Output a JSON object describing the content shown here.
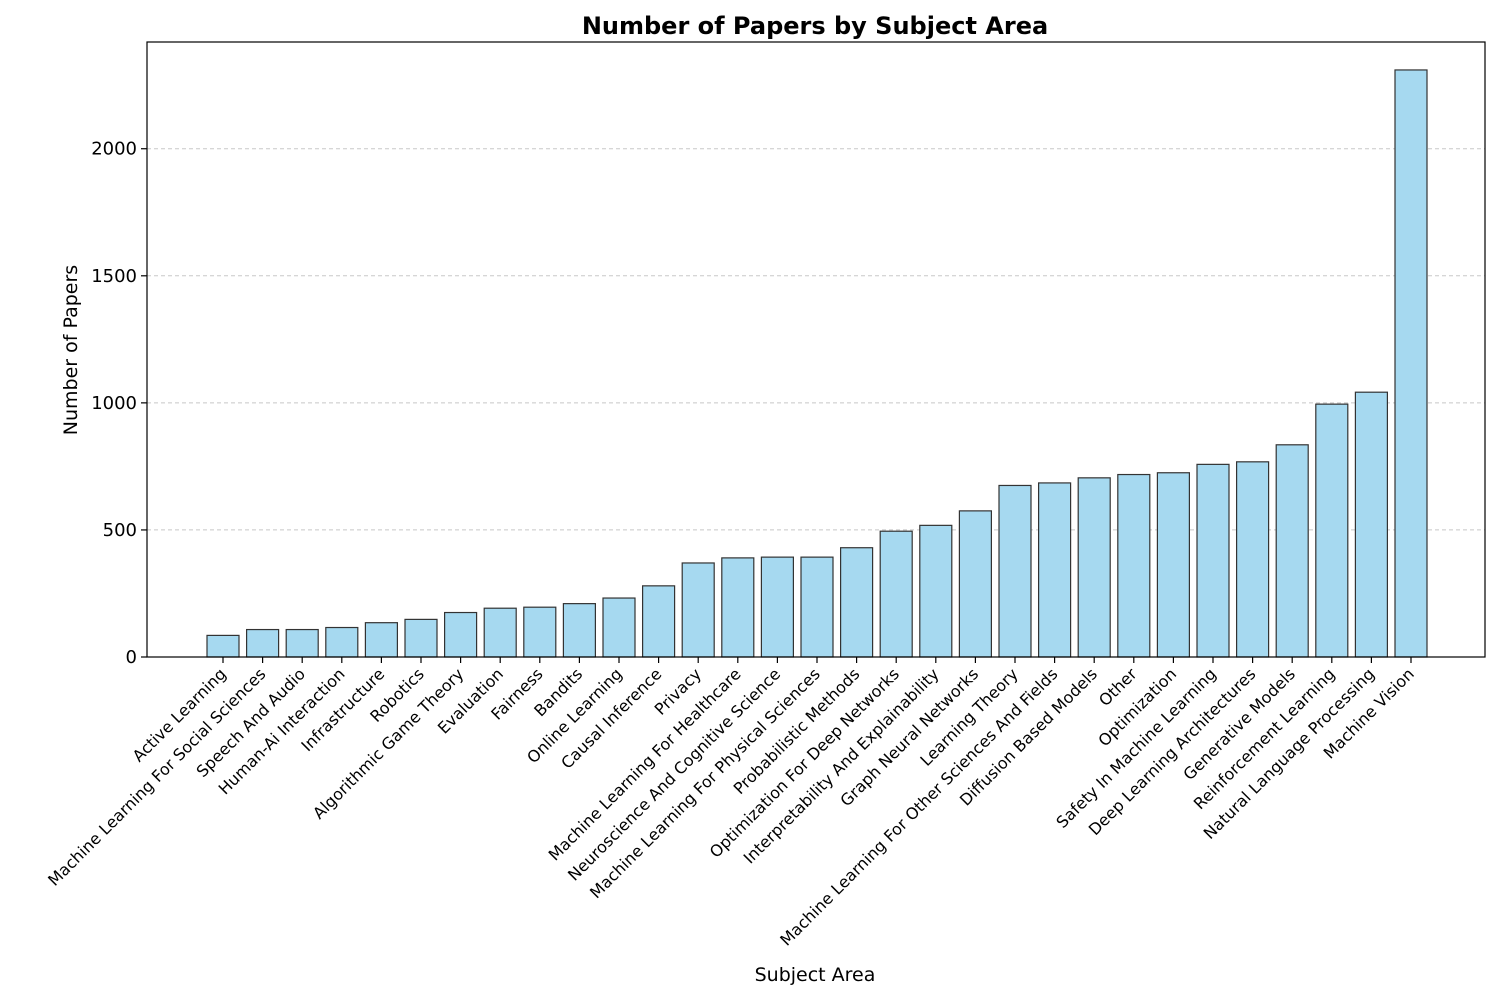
{
  "chart_data": {
    "type": "bar",
    "title": "Number of Papers by Subject Area",
    "xlabel": "Subject Area",
    "ylabel": "Number of Papers",
    "ylim": [
      0,
      2420
    ],
    "yticks": [
      0,
      500,
      1000,
      1500,
      2000
    ],
    "grid": "horizontal dashed",
    "bar_color": "#a6d9f0",
    "bar_edge_color": "#333333",
    "categories": [
      "Active Learning",
      "Machine Learning For Social Sciences",
      "Speech And Audio",
      "Human-Ai Interaction",
      "Infrastructure",
      "Robotics",
      "Algorithmic Game Theory",
      "Evaluation",
      "Fairness",
      "Bandits",
      "Online Learning",
      "Causal Inference",
      "Privacy",
      "Machine Learning For Healthcare",
      "Neuroscience And Cognitive Science",
      "Machine Learning For Physical Sciences",
      "Probabilistic Methods",
      "Optimization For Deep Networks",
      "Interpretability And Explainability",
      "Graph Neural Networks",
      "Learning Theory",
      "Machine Learning For Other Sciences And Fields",
      "Diffusion Based Models",
      "Other",
      "Optimization",
      "Safety In Machine Learning",
      "Deep Learning Architectures",
      "Generative Models",
      "Reinforcement Learning",
      "Natural Language Processing",
      "Machine Vision"
    ],
    "values": [
      85,
      108,
      108,
      116,
      135,
      148,
      175,
      192,
      196,
      210,
      232,
      280,
      370,
      390,
      393,
      393,
      430,
      495,
      518,
      575,
      675,
      685,
      705,
      718,
      725,
      758,
      768,
      835,
      995,
      1042,
      2310
    ]
  }
}
